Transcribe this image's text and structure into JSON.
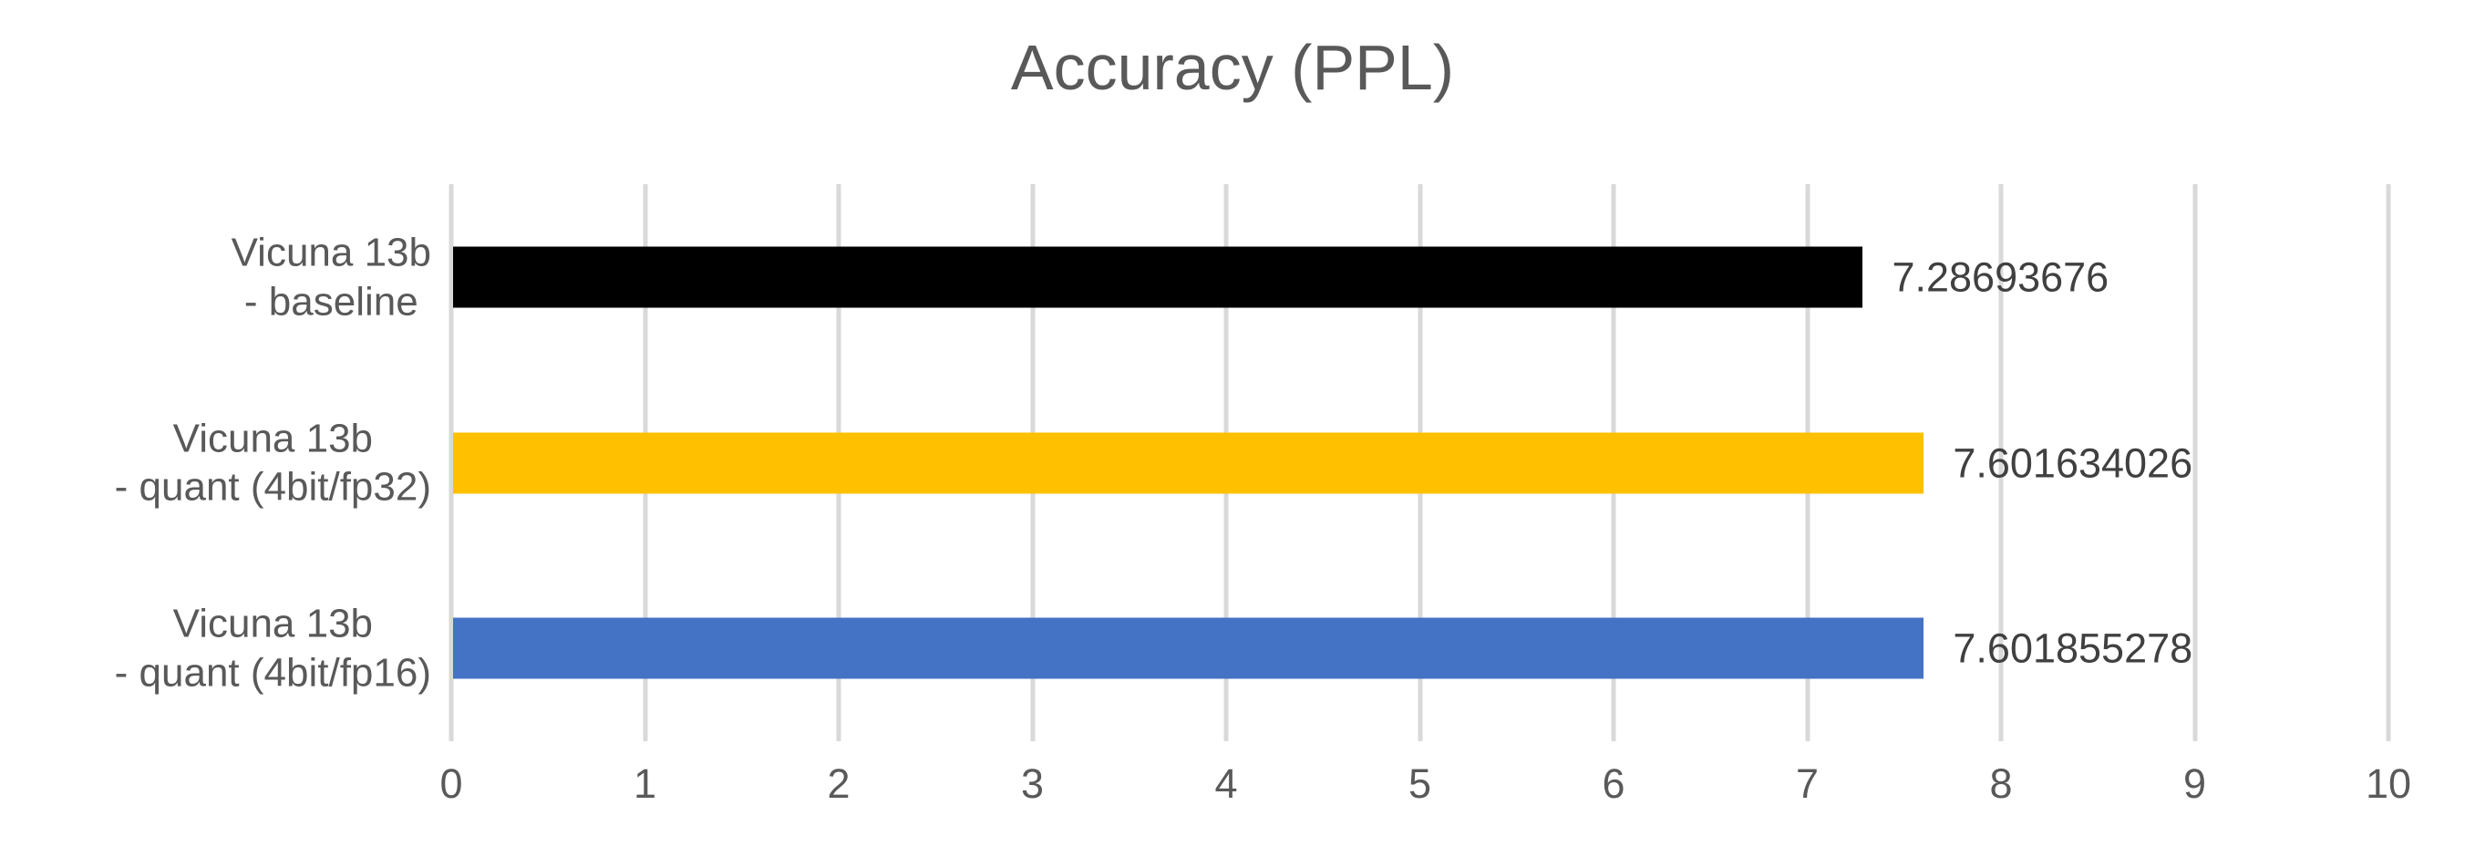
{
  "chart_data": {
    "type": "bar",
    "orientation": "horizontal",
    "title": "Accuracy (PPL)",
    "categories": [
      "Vicuna 13b\n- baseline",
      "Vicuna 13b\n- quant (4bit/fp32)",
      "Vicuna 13b\n- quant (4bit/fp16)"
    ],
    "values": [
      7.28693676,
      7.601634026,
      7.601855278
    ],
    "value_labels": [
      "7.28693676",
      "7.601634026",
      "7.601855278"
    ],
    "bar_colors": [
      "#000000",
      "#FFC000",
      "#4472C4"
    ],
    "xlim": [
      0,
      10
    ],
    "x_ticks": [
      0,
      1,
      2,
      3,
      4,
      5,
      6,
      7,
      8,
      9,
      10
    ],
    "grid": true,
    "legend": "none",
    "colors": {
      "gridline": "#D9D9D9",
      "title_text": "#595959",
      "axis_text": "#595959",
      "data_label_text": "#404040",
      "background": "#FFFFFF"
    }
  }
}
